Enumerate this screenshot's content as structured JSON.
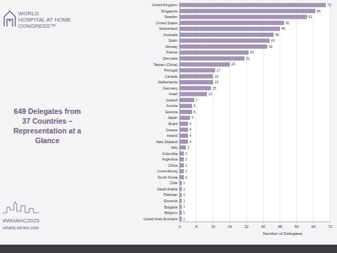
{
  "slide": {
    "logo": [
      "WORLD",
      "HOSPITAL AT HOME",
      "CONGRESS™"
    ],
    "hashtag": "#WHAHC2025",
    "url": "whahc.kenes.com"
  },
  "chart_data": {
    "type": "bar",
    "orientation": "horizontal",
    "title": "649 Delegates from 37 Countries – Representation at a Glance",
    "x_label": "Number of Delegates",
    "categories": [
      "United Kingdom",
      "Singapore",
      "Sweden",
      "United States",
      "Switzerland",
      "Australia",
      "Spain",
      "Norway",
      "France",
      "Denmark",
      "Taiwan (China)",
      "Portugal",
      "Canada",
      "Netherlands",
      "Germany",
      "Israel",
      "Iceland",
      "Austria",
      "Estonia",
      "Japan",
      "Brazil",
      "Greece",
      "Ireland",
      "New Zealand",
      "Italy",
      "Colombia",
      "Argentina",
      "China",
      "Luxembourg",
      "South Korea",
      "Chile",
      "Saudi Arabia",
      "Pakistan",
      "Slovenia",
      "Bulgaria",
      "Belgium",
      "United Arab Emirates"
    ],
    "values": [
      70,
      65,
      61,
      50,
      48,
      45,
      43,
      42,
      33,
      31,
      24,
      17,
      16,
      16,
      15,
      13,
      7,
      6,
      6,
      5,
      4,
      4,
      4,
      4,
      3,
      2,
      2,
      2,
      2,
      2,
      1,
      1,
      1,
      1,
      1,
      1,
      1
    ],
    "color": "#a394b5",
    "xlim": [
      0,
      72
    ],
    "xticks": [
      0,
      8,
      16,
      24,
      32,
      40,
      48,
      56,
      64,
      72
    ],
    "grid": true,
    "data_labels": true
  }
}
